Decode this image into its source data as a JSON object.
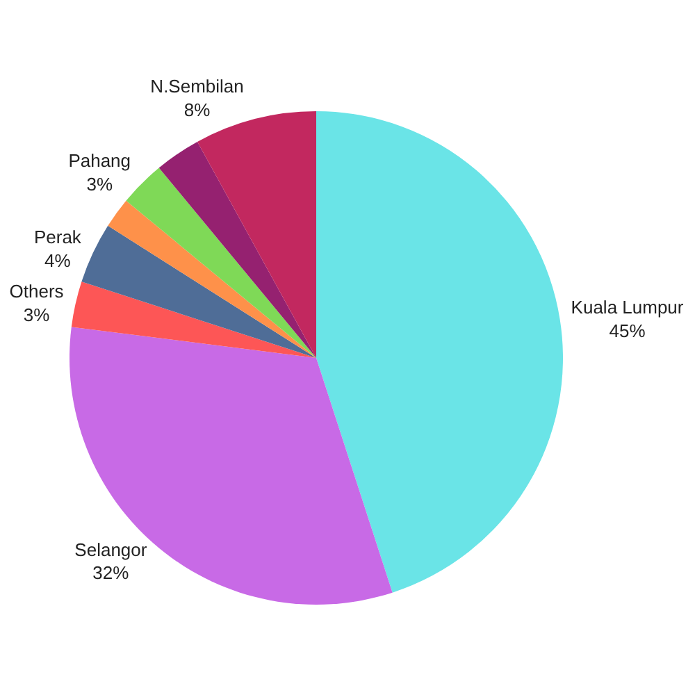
{
  "chart_data": {
    "type": "pie",
    "categories": [
      "Kuala Lumpur",
      "Selangor",
      "Others",
      "Perak",
      null,
      "Pahang",
      null,
      "N.Sembilan"
    ],
    "values": [
      45,
      32,
      3,
      4,
      2,
      3,
      3,
      8
    ],
    "value_labels": [
      "45%",
      "32%",
      "3%",
      "4%",
      null,
      "3%",
      null,
      "8%"
    ],
    "colors": [
      "#6ae4e7",
      "#c86ae6",
      "#fd5656",
      "#4f6d97",
      "#fe914a",
      "#7fd957",
      "#952170",
      "#c2285f"
    ]
  }
}
